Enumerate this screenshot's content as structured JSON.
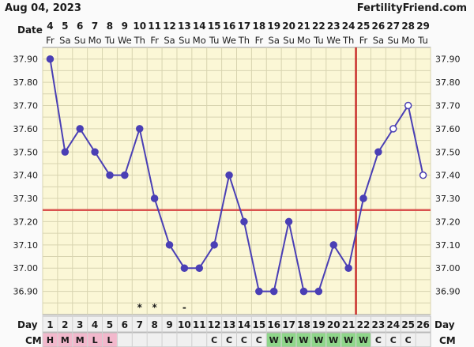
{
  "header": {
    "date_text": "Aug 04, 2023",
    "brand": "FertilityFriend.com"
  },
  "colors": {
    "plot_bg": "#fbf7d6",
    "grid": "#d8d4b0",
    "line": "#4a3fb5",
    "coverline": "#d9534f",
    "ovulation": "#c9302c",
    "cm_menses": "#f2b8cc",
    "cm_wet": "#8fd68a",
    "row_bg": "#f0f0f0"
  },
  "chart_data": {
    "type": "line",
    "row_labels": {
      "date": "Date",
      "day": "Day",
      "cm": "CM"
    },
    "dates": [
      "4",
      "5",
      "6",
      "7",
      "8",
      "9",
      "10",
      "11",
      "12",
      "13",
      "14",
      "15",
      "16",
      "17",
      "18",
      "19",
      "20",
      "21",
      "22",
      "23",
      "24",
      "25",
      "26",
      "27",
      "28",
      "29"
    ],
    "weekdays": [
      "Fr",
      "Sa",
      "Su",
      "Mo",
      "Tu",
      "We",
      "Th",
      "Fr",
      "Sa",
      "Su",
      "Mo",
      "Tu",
      "We",
      "Th",
      "Fr",
      "Sa",
      "Su",
      "Mo",
      "Tu",
      "We",
      "Th",
      "Fr",
      "Sa",
      "Su",
      "Mo",
      "Tu"
    ],
    "cycle_days": [
      "1",
      "2",
      "3",
      "4",
      "5",
      "6",
      "7",
      "8",
      "9",
      "10",
      "11",
      "12",
      "13",
      "14",
      "15",
      "16",
      "17",
      "18",
      "19",
      "20",
      "21",
      "22",
      "23",
      "24",
      "25",
      "26"
    ],
    "temps": [
      37.9,
      37.5,
      37.6,
      37.5,
      37.4,
      37.4,
      37.6,
      37.3,
      37.1,
      37.0,
      37.0,
      37.1,
      37.4,
      37.2,
      36.9,
      36.9,
      37.2,
      36.9,
      36.9,
      37.1,
      37.0,
      37.3,
      37.5,
      37.6,
      37.7,
      37.4
    ],
    "point_style": [
      "filled",
      "filled",
      "filled",
      "filled",
      "filled",
      "filled",
      "filled",
      "filled",
      "filled",
      "filled",
      "filled",
      "filled",
      "filled",
      "filled",
      "filled",
      "filled",
      "filled",
      "filled",
      "filled",
      "filled",
      "filled",
      "filled",
      "filled",
      "open",
      "open",
      "open"
    ],
    "markers": [
      "",
      "",
      "",
      "",
      "",
      "",
      "*",
      "*",
      "",
      "-",
      "",
      "",
      "",
      "",
      "",
      "",
      "",
      "",
      "",
      "",
      "",
      "",
      "",
      "",
      "",
      ""
    ],
    "cm": [
      "H",
      "M",
      "M",
      "L",
      "L",
      "",
      "",
      "",
      "",
      "",
      "",
      "C",
      "C",
      "C",
      "C",
      "W",
      "W",
      "W",
      "W",
      "W",
      "W",
      "W",
      "C",
      "C",
      "C",
      ""
    ],
    "cm_type": [
      "menses",
      "menses",
      "menses",
      "menses",
      "menses",
      "",
      "",
      "",
      "",
      "",
      "",
      "",
      "",
      "",
      "",
      "wet",
      "wet",
      "wet",
      "wet",
      "wet",
      "wet",
      "wet",
      "",
      "",
      "",
      ""
    ],
    "ylim": [
      36.8,
      37.95
    ],
    "y_ticks": [
      "36.90",
      "37.00",
      "37.10",
      "37.20",
      "37.30",
      "37.40",
      "37.50",
      "37.60",
      "37.70",
      "37.80",
      "37.90"
    ],
    "coverline": 37.25,
    "ovulation_day": 21,
    "grid": true
  }
}
